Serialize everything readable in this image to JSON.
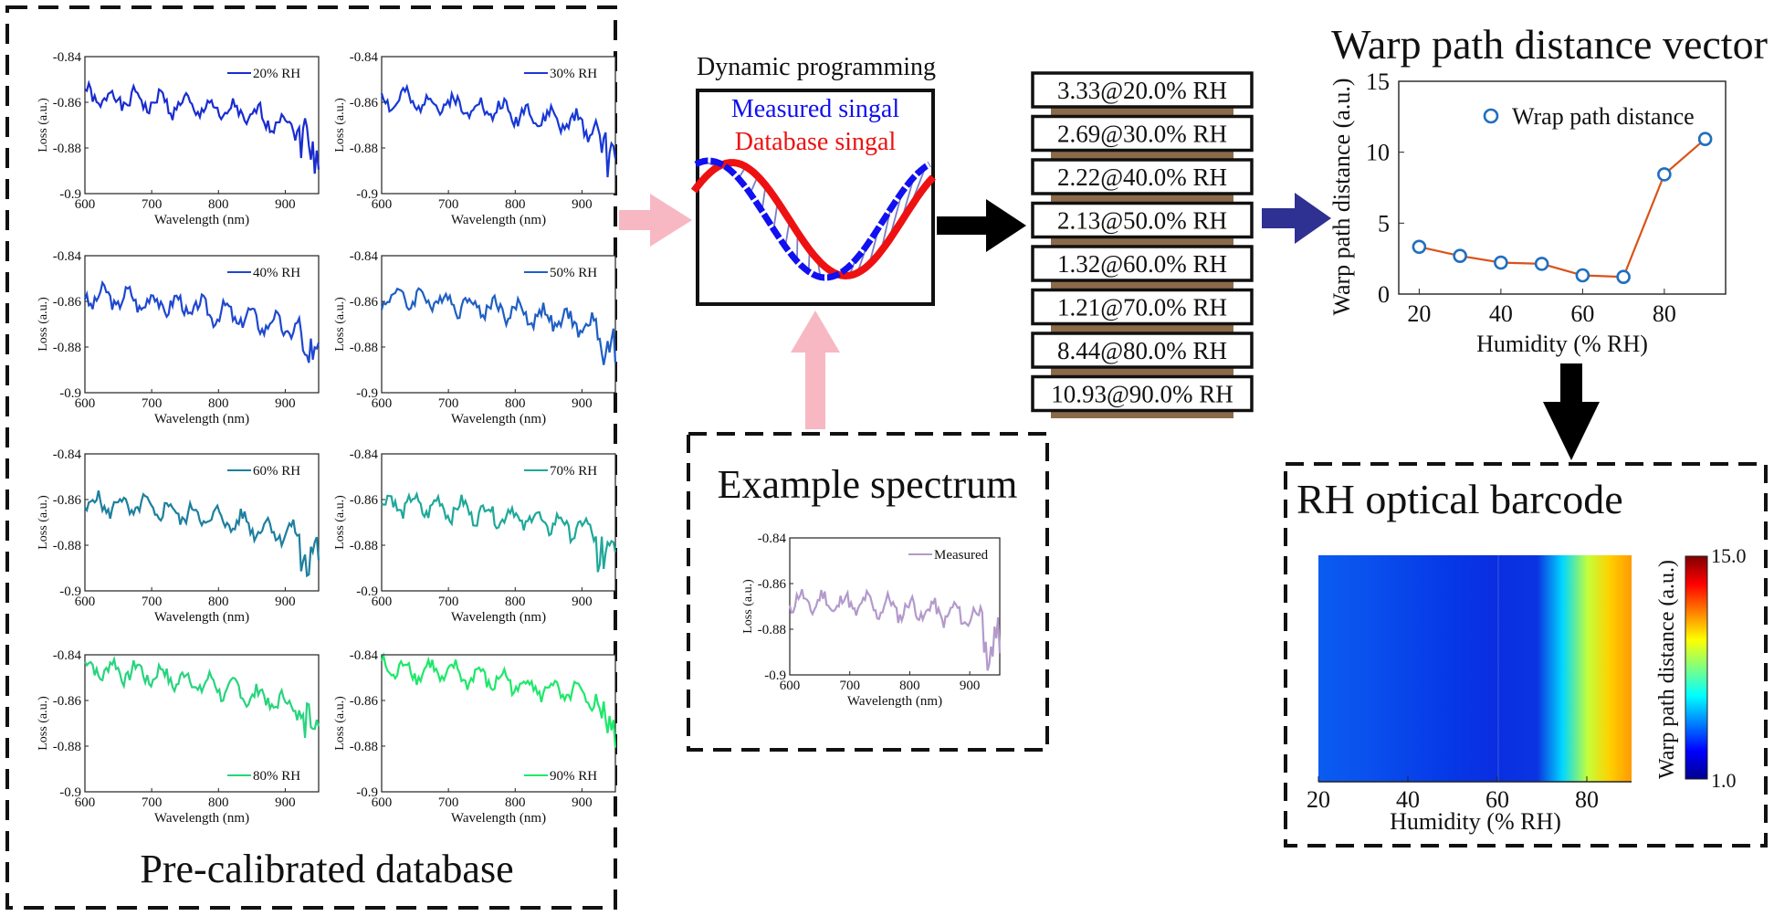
{
  "database": {
    "caption": "Pre-calibrated database",
    "panels": [
      {
        "legend": "20% RH",
        "color": "#1a2ccf",
        "seed": 1
      },
      {
        "legend": "30% RH",
        "color": "#1838d6",
        "seed": 2
      },
      {
        "legend": "40% RH",
        "color": "#1f47cf",
        "seed": 3
      },
      {
        "legend": "50% RH",
        "color": "#1e5fc4",
        "seed": 4
      },
      {
        "legend": "60% RH",
        "color": "#1d7f9e",
        "seed": 5
      },
      {
        "legend": "70% RH",
        "color": "#1ea89a",
        "seed": 6
      },
      {
        "legend": "80% RH",
        "color": "#27d47e",
        "seed": 7
      },
      {
        "legend": "90% RH",
        "color": "#1ee86a",
        "seed": 8
      }
    ],
    "axes": {
      "xlabel": "Wavelength (nm)",
      "ylabel": "Loss (a.u.)",
      "xticks": [
        "600",
        "700",
        "800",
        "900"
      ],
      "yticks": [
        "-0.84",
        "-0.86",
        "-0.88",
        "-0.9"
      ]
    }
  },
  "dp": {
    "title": "Dynamic programming",
    "measured_label": "Measured singal",
    "database_label": "Database singal",
    "measured_color": "#1010f0",
    "database_color": "#ee1111"
  },
  "example": {
    "title": "Example spectrum",
    "legend": "Measured",
    "color": "#b39acb"
  },
  "vector": {
    "items": [
      "3.33@20.0% RH",
      "2.69@30.0% RH",
      "2.22@40.0% RH",
      "2.13@50.0% RH",
      "1.32@60.0% RH",
      "1.21@70.0% RH",
      "8.44@80.0% RH",
      "10.93@90.0% RH"
    ]
  },
  "warp_chart": {
    "title": "Warp path distance vector",
    "xlabel": "Humidity (% RH)",
    "ylabel": "Warp path distance (a.u.)",
    "legend": "Wrap path distance",
    "xticks": [
      "20",
      "40",
      "60",
      "80"
    ],
    "yticks": [
      "0",
      "5",
      "10",
      "15"
    ]
  },
  "chart_data": {
    "type": "line",
    "x": [
      20,
      30,
      40,
      50,
      60,
      70,
      80,
      90
    ],
    "series": [
      {
        "name": "Wrap path distance",
        "values": [
          3.33,
          2.69,
          2.22,
          2.13,
          1.32,
          1.21,
          8.44,
          10.93
        ]
      }
    ],
    "xlim": [
      15,
      95
    ],
    "ylim": [
      0,
      15
    ],
    "marker_color": "#1f6fbf",
    "line_color": "#d95319"
  },
  "barcode": {
    "title": "RH optical barcode",
    "xlabel": "Humidity (% RH)",
    "colorbar_label": "Warp path distance (a.u.)",
    "cbar_max": "15.0",
    "cbar_min": "1.0",
    "xticks": [
      "20",
      "40",
      "60",
      "80"
    ]
  },
  "arrows": {
    "pink": "#f7b8c4",
    "black": "#000000",
    "navy": "#2e3192"
  }
}
